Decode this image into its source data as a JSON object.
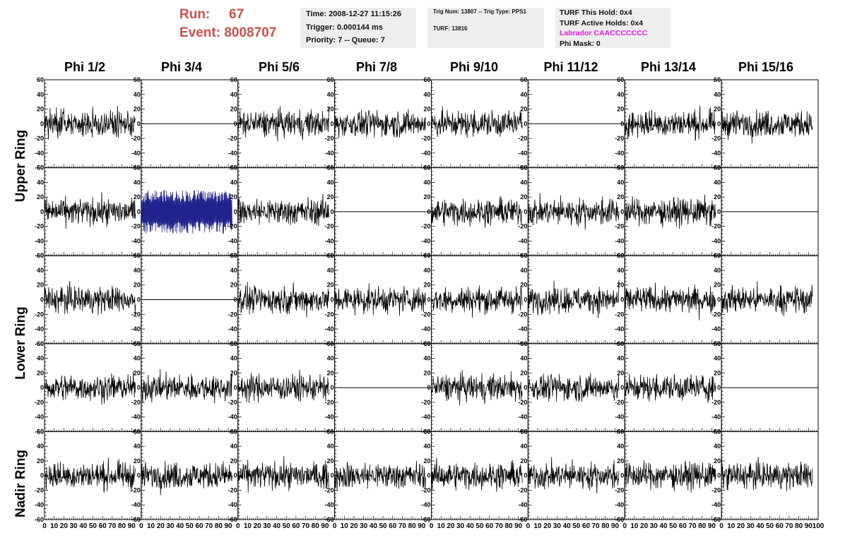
{
  "header": {
    "run_label": "Run:",
    "run_value": "67",
    "event_label": "Event:",
    "event_value": "8008707",
    "time": "Time: 2008-12-27 11:15:26",
    "trigger": "Trigger: 0.000144 ms",
    "priority": "Priority: 7 -- Queue: 7",
    "trig_num": "Trig Num: 13807 -- Trig Type: PPS1",
    "turf": "TURF: 13816",
    "turf_hold": "TURF This Hold: 0x4",
    "turf_active": "TURF Active Holds: 0x4",
    "labrador": "Labrador CAACCCCCCC",
    "phi_mask": "Phi Mask: 0"
  },
  "colors": {
    "run_event": "#c8504b",
    "labrador": "#e617e6",
    "trace": "#000000",
    "highlight_trace": "#22228c"
  },
  "columns": [
    "Phi 1/2",
    "Phi 3/4",
    "Phi 5/6",
    "Phi 7/8",
    "Phi 9/10",
    "Phi 11/12",
    "Phi 13/14",
    "Phi 15/16"
  ],
  "rows": [
    {
      "label": "Upper Ring"
    },
    {
      "label": "Lower Ring"
    },
    {
      "label": "Nadir Ring"
    }
  ],
  "chart_data": {
    "type": "line",
    "panel_rows": 5,
    "panel_cols": 8,
    "ylim": [
      -60,
      60
    ],
    "xlim": [
      0,
      100
    ],
    "y_ticks": [
      -60,
      -40,
      -20,
      0,
      20,
      40,
      60
    ],
    "x_tick_labels": [
      "0",
      "10",
      "20",
      "30",
      "40",
      "50",
      "60",
      "70",
      "80",
      "90",
      "100"
    ],
    "flat_panels": [
      [
        0,
        1
      ],
      [
        0,
        5
      ],
      [
        1,
        3
      ],
      [
        1,
        7
      ],
      [
        2,
        1
      ],
      [
        3,
        3
      ],
      [
        3,
        7
      ]
    ],
    "highlight_panels": [
      [
        1,
        1
      ]
    ],
    "trace_amplitude": 15,
    "trace_length_x": 94,
    "note_blank": ""
  }
}
